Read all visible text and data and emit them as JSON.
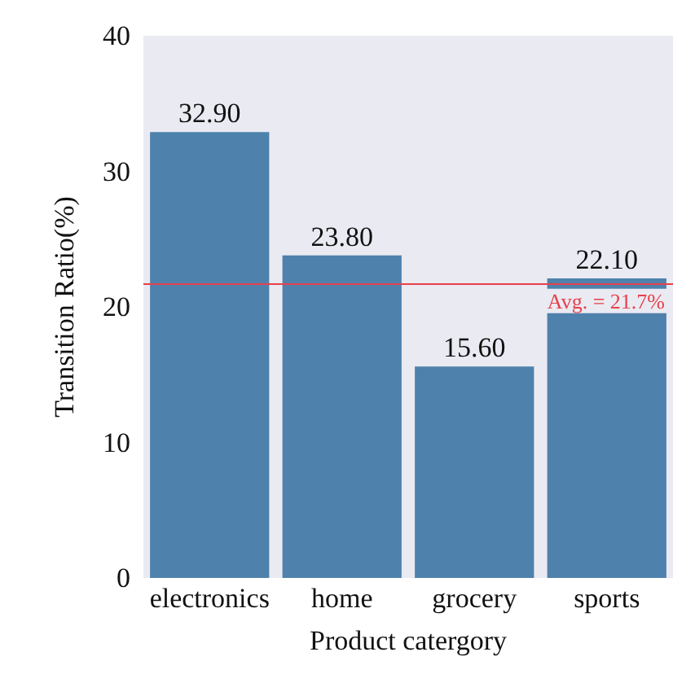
{
  "chart_data": {
    "type": "bar",
    "xlabel": "Product catergory",
    "ylabel": "Transition Ratio(%)",
    "categories": [
      "electronics",
      "home",
      "grocery",
      "sports"
    ],
    "values": [
      32.9,
      23.8,
      15.6,
      22.1
    ],
    "value_labels": [
      "32.90",
      "23.80",
      "15.60",
      "22.10"
    ],
    "color": "#4e81ac",
    "ylim": [
      0,
      40
    ],
    "yticks": [
      0,
      10,
      20,
      30,
      40
    ],
    "ref_lines": [
      {
        "axis": "y",
        "value": 21.7,
        "label": "Avg. = 21.7%",
        "color": "#e8404a"
      }
    ],
    "grid": false
  }
}
